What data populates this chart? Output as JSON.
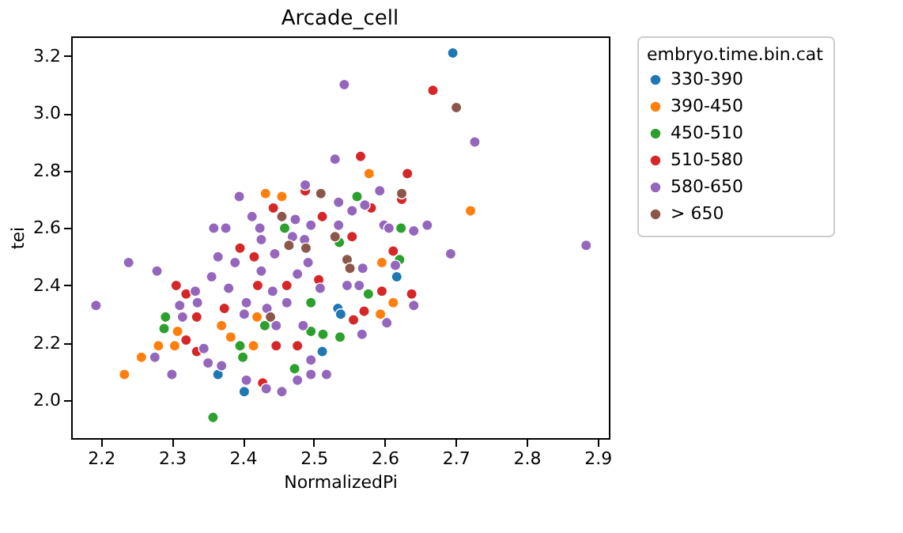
{
  "chart_data": {
    "type": "scatter",
    "title": "Arcade_cell",
    "xlabel": "NormalizedPi",
    "ylabel": "tei",
    "legend_title": "embryo.time.bin.cat",
    "legend": "top right",
    "grid": false,
    "marker": "circle",
    "xlim": [
      2.158,
      2.916
    ],
    "ylim": [
      1.868,
      3.268
    ],
    "xticks": [
      2.2,
      2.3,
      2.4,
      2.5,
      2.6,
      2.7,
      2.8,
      2.9
    ],
    "yticks": [
      {
        "value": 2.0,
        "label": "2.0"
      },
      2.2,
      2.4,
      2.6,
      2.8,
      {
        "value": 3.0,
        "label": "3.0"
      },
      3.2
    ],
    "series": [
      {
        "name": "330-390",
        "color": "#1f77b4",
        "x": [
          2.365,
          2.402,
          2.512,
          2.534,
          2.696,
          2.617,
          2.538
        ],
        "values": [
          2.09,
          2.03,
          2.17,
          2.32,
          3.21,
          2.43,
          2.3
        ]
      },
      {
        "name": "390-450",
        "color": "#ff7f0e",
        "x": [
          2.233,
          2.257,
          2.281,
          2.304,
          2.308,
          2.415,
          2.383,
          2.37,
          2.432,
          2.455,
          2.42,
          2.578,
          2.721,
          2.596,
          2.612,
          2.594
        ],
        "values": [
          2.09,
          2.15,
          2.19,
          2.19,
          2.24,
          2.19,
          2.22,
          2.26,
          2.72,
          2.71,
          2.29,
          2.79,
          2.66,
          2.48,
          2.34,
          2.3
        ]
      },
      {
        "name": "450-510",
        "color": "#2ca02c",
        "x": [
          2.291,
          2.289,
          2.358,
          2.473,
          2.4,
          2.396,
          2.459,
          2.431,
          2.496,
          2.513,
          2.496,
          2.561,
          2.623,
          2.536,
          2.621,
          2.577,
          2.537
        ],
        "values": [
          2.29,
          2.25,
          1.94,
          2.11,
          2.15,
          2.19,
          2.6,
          2.26,
          2.24,
          2.23,
          2.34,
          2.71,
          2.6,
          2.55,
          2.49,
          2.37,
          2.22
        ]
      },
      {
        "name": "510-580",
        "color": "#d62728",
        "x": [
          2.32,
          2.306,
          2.335,
          2.32,
          2.335,
          2.428,
          2.443,
          2.396,
          2.416,
          2.488,
          2.512,
          2.421,
          2.462,
          2.507,
          2.447,
          2.477,
          2.374,
          2.668,
          2.566,
          2.632,
          2.624,
          2.581,
          2.554,
          2.612,
          2.596,
          2.638,
          2.571,
          2.556
        ],
        "values": [
          2.37,
          2.4,
          2.29,
          2.21,
          2.17,
          2.06,
          2.67,
          2.53,
          2.5,
          2.73,
          2.64,
          2.4,
          2.4,
          2.42,
          2.19,
          2.19,
          2.32,
          3.08,
          2.85,
          2.79,
          2.7,
          2.67,
          2.57,
          2.52,
          2.38,
          2.37,
          2.31,
          2.28
        ]
      },
      {
        "name": "580-650",
        "color": "#9467bd",
        "x": [
          2.193,
          2.239,
          2.279,
          2.276,
          2.315,
          2.311,
          2.333,
          2.336,
          2.3,
          2.345,
          2.351,
          2.37,
          2.405,
          2.433,
          2.455,
          2.477,
          2.496,
          2.496,
          2.518,
          2.359,
          2.376,
          2.395,
          2.413,
          2.424,
          2.426,
          2.365,
          2.356,
          2.389,
          2.488,
          2.53,
          2.543,
          2.474,
          2.496,
          2.47,
          2.487,
          2.445,
          2.426,
          2.442,
          2.477,
          2.492,
          2.509,
          2.462,
          2.405,
          2.434,
          2.402,
          2.447,
          2.485,
          2.38,
          2.727,
          2.593,
          2.572,
          2.554,
          2.535,
          2.599,
          2.606,
          2.641,
          2.66,
          2.884,
          2.693,
          2.615,
          2.569,
          2.547,
          2.564,
          2.641,
          2.603,
          2.568,
          2.535
        ],
        "values": [
          2.33,
          2.48,
          2.45,
          2.15,
          2.29,
          2.33,
          2.38,
          2.34,
          2.09,
          2.18,
          2.13,
          2.12,
          2.07,
          2.04,
          2.03,
          2.07,
          2.09,
          2.14,
          2.09,
          2.6,
          2.6,
          2.71,
          2.64,
          2.6,
          2.56,
          2.5,
          2.43,
          2.48,
          2.75,
          2.84,
          3.1,
          2.63,
          2.61,
          2.57,
          2.56,
          2.51,
          2.45,
          2.38,
          2.44,
          2.48,
          2.39,
          2.34,
          2.34,
          2.32,
          2.3,
          2.26,
          2.26,
          2.39,
          2.9,
          2.73,
          2.68,
          2.66,
          2.61,
          2.61,
          2.6,
          2.59,
          2.61,
          2.54,
          2.51,
          2.47,
          2.46,
          2.4,
          2.4,
          2.33,
          2.27,
          2.23,
          2.69
        ]
      },
      {
        "name": "> 650",
        "color": "#8c564b",
        "x": [
          2.439,
          2.455,
          2.51,
          2.465,
          2.489,
          2.701,
          2.624,
          2.53,
          2.547,
          2.551
        ],
        "values": [
          2.29,
          2.64,
          2.72,
          2.54,
          2.53,
          3.02,
          2.72,
          2.57,
          2.49,
          2.46
        ]
      }
    ]
  }
}
